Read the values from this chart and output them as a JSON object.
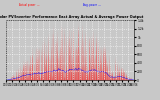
{
  "title": "Solar PV/Inverter Performance East Array Actual & Average Power Output",
  "bg_color": "#c8c8c8",
  "plot_bg_color": "#c8c8c8",
  "actual_color": "#ff0000",
  "avg_color": "#0000ff",
  "grid_color": "#ffffff",
  "ylim": [
    0,
    1400
  ],
  "ytick_labels": [
    "1.4k",
    "1.2k",
    "1k",
    "800",
    "600",
    "400",
    "200",
    "0"
  ],
  "ytick_vals": [
    1400,
    1200,
    1000,
    800,
    600,
    400,
    200,
    0
  ],
  "num_days": 200,
  "num_points_per_day": 48
}
